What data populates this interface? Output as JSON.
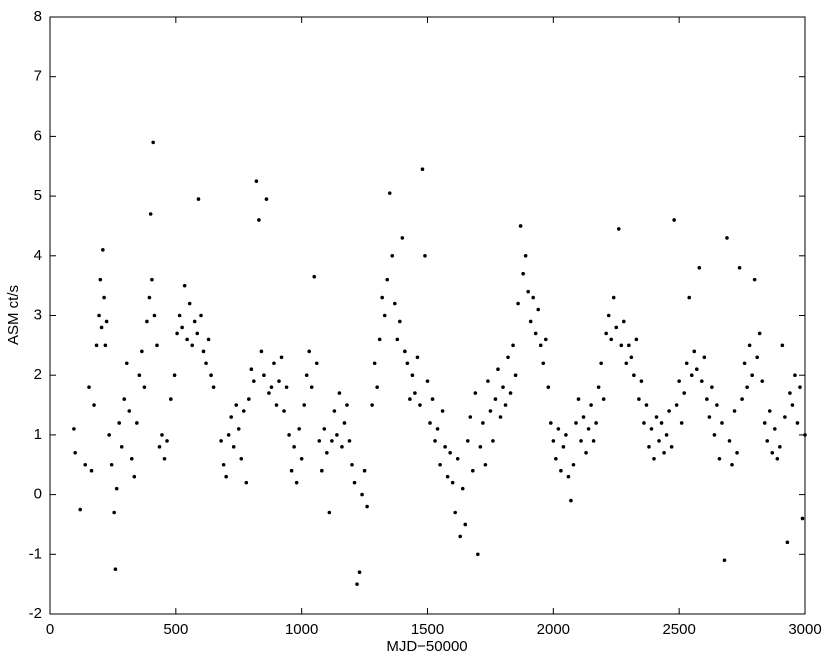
{
  "chart_data": {
    "type": "scatter",
    "x_label": "MJD−50000",
    "y_label": "ASM ct/s",
    "color": "#000000",
    "xlim": [
      0,
      3000
    ],
    "xticks": [
      0,
      500,
      1000,
      1500,
      2000,
      2500,
      3000
    ],
    "ylim": [
      -2,
      8
    ],
    "yticks": [
      -2,
      -1,
      0,
      1,
      2,
      3,
      4,
      5,
      6,
      7,
      8
    ],
    "grid": false,
    "x": [
      95,
      100,
      120,
      140,
      155,
      165,
      175,
      185,
      195,
      200,
      205,
      210,
      215,
      220,
      225,
      235,
      245,
      255,
      260,
      265,
      275,
      285,
      295,
      305,
      315,
      325,
      335,
      345,
      355,
      365,
      375,
      385,
      395,
      400,
      405,
      410,
      415,
      425,
      435,
      445,
      455,
      465,
      480,
      495,
      505,
      515,
      525,
      535,
      545,
      555,
      565,
      575,
      585,
      590,
      600,
      610,
      620,
      630,
      640,
      650,
      680,
      690,
      700,
      710,
      720,
      730,
      740,
      750,
      760,
      770,
      780,
      790,
      800,
      810,
      820,
      830,
      840,
      850,
      860,
      870,
      880,
      890,
      900,
      910,
      920,
      930,
      940,
      950,
      960,
      970,
      980,
      990,
      1000,
      1010,
      1020,
      1030,
      1040,
      1050,
      1060,
      1070,
      1080,
      1090,
      1100,
      1110,
      1120,
      1130,
      1140,
      1150,
      1160,
      1170,
      1180,
      1190,
      1200,
      1210,
      1220,
      1230,
      1240,
      1250,
      1260,
      1280,
      1290,
      1300,
      1310,
      1320,
      1330,
      1340,
      1350,
      1360,
      1370,
      1380,
      1390,
      1400,
      1410,
      1420,
      1430,
      1440,
      1450,
      1460,
      1470,
      1480,
      1490,
      1500,
      1510,
      1520,
      1530,
      1540,
      1550,
      1560,
      1570,
      1580,
      1590,
      1600,
      1610,
      1620,
      1630,
      1640,
      1650,
      1660,
      1670,
      1680,
      1690,
      1700,
      1710,
      1720,
      1730,
      1740,
      1750,
      1760,
      1770,
      1780,
      1790,
      1800,
      1810,
      1820,
      1830,
      1840,
      1850,
      1860,
      1870,
      1880,
      1890,
      1900,
      1910,
      1920,
      1930,
      1940,
      1950,
      1960,
      1970,
      1980,
      1990,
      2000,
      2010,
      2020,
      2030,
      2040,
      2050,
      2060,
      2070,
      2080,
      2090,
      2100,
      2110,
      2120,
      2130,
      2140,
      2150,
      2160,
      2170,
      2180,
      2190,
      2200,
      2210,
      2220,
      2230,
      2240,
      2250,
      2260,
      2270,
      2280,
      2290,
      2300,
      2310,
      2320,
      2330,
      2340,
      2350,
      2360,
      2370,
      2380,
      2390,
      2400,
      2410,
      2420,
      2430,
      2440,
      2450,
      2460,
      2470,
      2480,
      2490,
      2500,
      2510,
      2520,
      2530,
      2540,
      2550,
      2560,
      2570,
      2580,
      2590,
      2600,
      2610,
      2620,
      2630,
      2640,
      2650,
      2660,
      2670,
      2680,
      2690,
      2700,
      2710,
      2720,
      2730,
      2740,
      2750,
      2760,
      2770,
      2780,
      2790,
      2800,
      2810,
      2820,
      2830,
      2840,
      2850,
      2860,
      2870,
      2880,
      2890,
      2900,
      2910,
      2920,
      2930,
      2940,
      2950,
      2960,
      2970,
      2980,
      2990,
      3000
    ],
    "values": [
      1.1,
      0.7,
      -0.25,
      0.5,
      1.8,
      0.4,
      1.5,
      2.5,
      3.0,
      3.6,
      2.8,
      4.1,
      3.3,
      2.5,
      2.9,
      1.0,
      0.5,
      -0.3,
      -1.25,
      0.1,
      1.2,
      0.8,
      1.6,
      2.2,
      1.4,
      0.6,
      0.3,
      1.2,
      2.0,
      2.4,
      1.8,
      2.9,
      3.3,
      4.7,
      3.6,
      5.9,
      3.0,
      2.5,
      0.8,
      1.0,
      0.6,
      0.9,
      1.6,
      2.0,
      2.7,
      3.0,
      2.8,
      3.5,
      2.6,
      3.2,
      2.5,
      2.9,
      2.7,
      4.95,
      3.0,
      2.4,
      2.2,
      2.6,
      2.0,
      1.8,
      0.9,
      0.5,
      0.3,
      1.0,
      1.3,
      0.8,
      1.5,
      1.1,
      0.6,
      1.4,
      0.2,
      1.6,
      2.1,
      1.9,
      5.25,
      4.6,
      2.4,
      2.0,
      4.95,
      1.7,
      1.8,
      2.2,
      1.5,
      1.9,
      2.3,
      1.4,
      1.8,
      1.0,
      0.4,
      0.8,
      0.2,
      1.1,
      0.6,
      1.5,
      2.0,
      2.4,
      1.8,
      3.65,
      2.2,
      0.9,
      0.4,
      1.1,
      0.7,
      -0.3,
      0.9,
      1.4,
      1.0,
      1.7,
      0.8,
      1.2,
      1.5,
      0.9,
      0.5,
      0.2,
      -1.5,
      -1.3,
      0.0,
      0.4,
      -0.2,
      1.5,
      2.2,
      1.8,
      2.6,
      3.3,
      3.0,
      3.6,
      5.05,
      4.0,
      3.2,
      2.6,
      2.9,
      4.3,
      2.4,
      2.2,
      1.6,
      2.0,
      1.7,
      2.3,
      1.5,
      5.45,
      4.0,
      1.9,
      1.2,
      1.6,
      0.9,
      1.1,
      0.5,
      1.4,
      0.8,
      0.3,
      0.7,
      0.2,
      -0.3,
      0.6,
      -0.7,
      0.1,
      -0.5,
      0.9,
      1.3,
      0.4,
      1.7,
      -1.0,
      0.8,
      1.2,
      0.5,
      1.9,
      1.4,
      0.9,
      1.6,
      2.1,
      1.3,
      1.8,
      1.5,
      2.3,
      1.7,
      2.5,
      2.0,
      3.2,
      4.5,
      3.7,
      4.0,
      3.4,
      2.9,
      3.3,
      2.7,
      3.1,
      2.5,
      2.2,
      2.6,
      1.8,
      1.2,
      0.9,
      0.6,
      1.1,
      0.4,
      0.8,
      1.0,
      0.3,
      -0.1,
      0.5,
      1.2,
      1.6,
      0.9,
      1.3,
      0.7,
      1.1,
      1.5,
      0.9,
      1.2,
      1.8,
      2.2,
      1.6,
      2.7,
      3.0,
      2.6,
      3.3,
      2.8,
      4.45,
      2.5,
      2.9,
      2.2,
      2.5,
      2.3,
      2.0,
      2.6,
      1.6,
      1.9,
      1.2,
      1.5,
      0.8,
      1.1,
      0.6,
      1.3,
      0.9,
      1.2,
      0.7,
      1.0,
      1.4,
      0.8,
      4.6,
      1.5,
      1.9,
      1.2,
      1.7,
      2.2,
      3.3,
      2.0,
      2.4,
      2.1,
      3.8,
      1.9,
      2.3,
      1.6,
      1.3,
      1.8,
      1.0,
      1.5,
      0.6,
      1.2,
      -1.1,
      4.3,
      0.9,
      0.5,
      1.4,
      0.7,
      3.8,
      1.6,
      2.2,
      1.8,
      2.5,
      2.0,
      3.6,
      2.3,
      2.7,
      1.9,
      1.2,
      0.9,
      1.4,
      0.7,
      1.1,
      0.6,
      0.8,
      2.5,
      1.3,
      -0.8,
      1.7,
      1.5,
      2.0,
      1.2,
      1.8,
      -0.4,
      1.0
    ]
  }
}
